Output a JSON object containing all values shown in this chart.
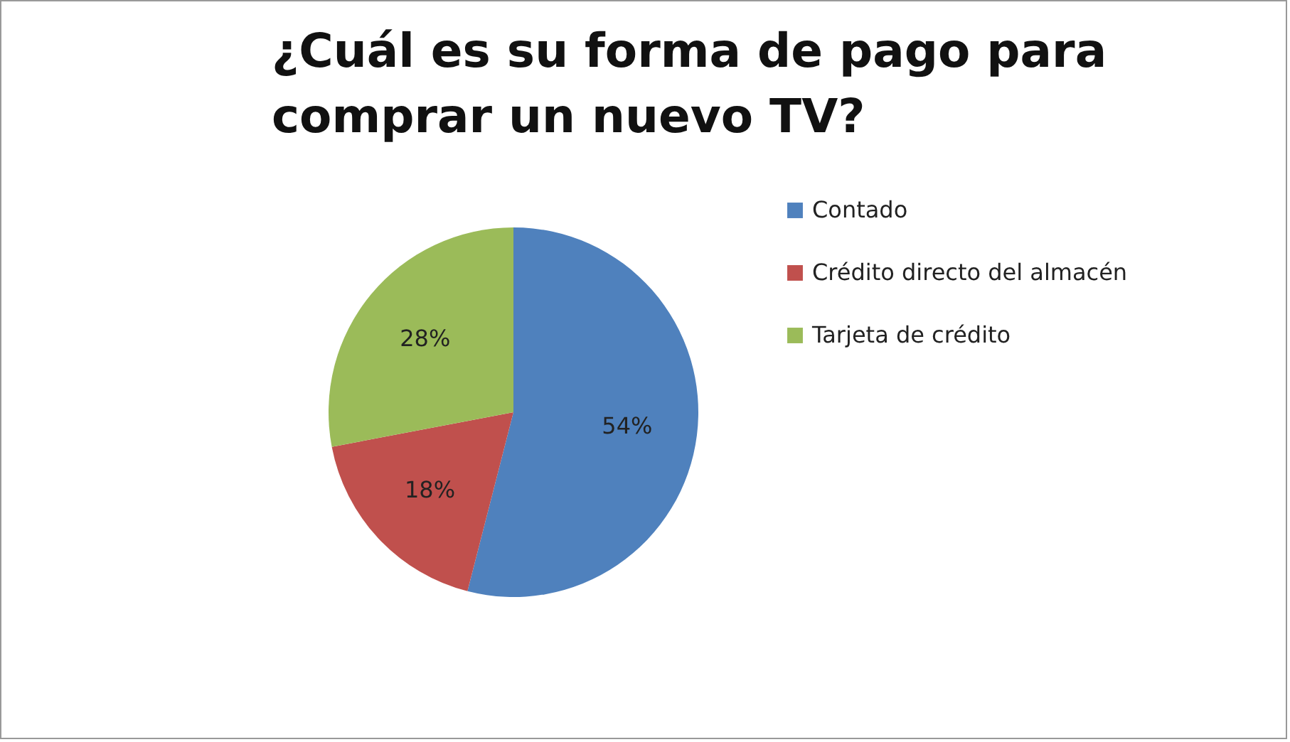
{
  "chart_data": {
    "type": "pie",
    "title": "¿Cuál es su forma de pago para comprar un nuevo TV?",
    "categories": [
      "Contado",
      "Crédito directo del almacén",
      "Tarjeta de crédito"
    ],
    "values": [
      54,
      18,
      28
    ],
    "colors": [
      "#4f81bd",
      "#c0504d",
      "#9bbb59"
    ],
    "value_labels": [
      "54%",
      "18%",
      "28%"
    ],
    "legend": "right"
  }
}
